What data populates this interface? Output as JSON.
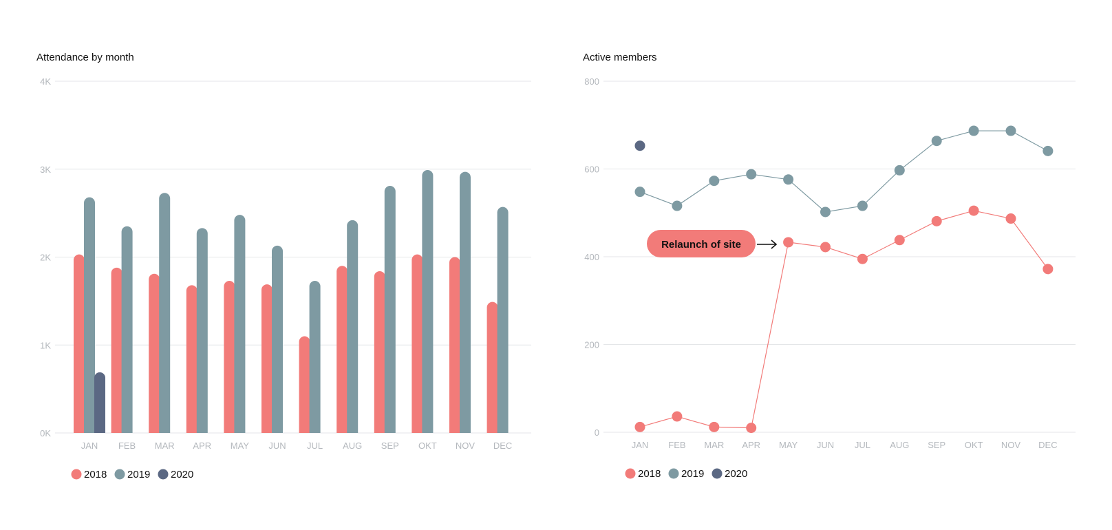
{
  "colors": {
    "2018": "#f27b79",
    "2019": "#7e9aa2",
    "2020": "#5b6883",
    "grid": "#e4e6e8",
    "tick": "#b4b8bd"
  },
  "chart_data": [
    {
      "id": "attendance",
      "type": "bar",
      "title": "Attendance by month",
      "xlabel": "",
      "ylabel": "",
      "categories": [
        "JAN",
        "FEB",
        "MAR",
        "APR",
        "MAY",
        "JUN",
        "JUL",
        "AUG",
        "SEP",
        "OKT",
        "NOV",
        "DEC"
      ],
      "ylim": [
        0,
        4000
      ],
      "yticks": [
        0,
        1000,
        2000,
        3000,
        4000
      ],
      "ytick_labels": [
        "0K",
        "1K",
        "2K",
        "3K",
        "4K"
      ],
      "grid": true,
      "legend_position": "bottom-left",
      "series": [
        {
          "name": "2018",
          "values": [
            2030,
            1880,
            1810,
            1680,
            1730,
            1690,
            1100,
            1900,
            1840,
            2030,
            2000,
            1490
          ]
        },
        {
          "name": "2019",
          "values": [
            2680,
            2350,
            2730,
            2330,
            2480,
            2130,
            1730,
            2420,
            2810,
            2990,
            2970,
            2570
          ]
        },
        {
          "name": "2020",
          "values": [
            690,
            null,
            null,
            null,
            null,
            null,
            null,
            null,
            null,
            null,
            null,
            null
          ]
        }
      ]
    },
    {
      "id": "members",
      "type": "line",
      "title": "Active members",
      "xlabel": "",
      "ylabel": "",
      "categories": [
        "JAN",
        "FEB",
        "MAR",
        "APR",
        "MAY",
        "JUN",
        "JUL",
        "AUG",
        "SEP",
        "OKT",
        "NOV",
        "DEC"
      ],
      "ylim": [
        0,
        800
      ],
      "yticks": [
        0,
        200,
        400,
        600,
        800
      ],
      "ytick_labels": [
        "0",
        "200",
        "400",
        "600",
        "800"
      ],
      "grid": true,
      "legend_position": "bottom-left",
      "series": [
        {
          "name": "2018",
          "values": [
            12,
            36,
            12,
            10,
            433,
            422,
            395,
            438,
            481,
            505,
            487,
            372
          ]
        },
        {
          "name": "2019",
          "values": [
            548,
            516,
            573,
            588,
            576,
            502,
            516,
            597,
            664,
            687,
            687,
            641
          ]
        },
        {
          "name": "2020",
          "values": [
            653,
            null,
            null,
            null,
            null,
            null,
            null,
            null,
            null,
            null,
            null,
            null
          ]
        }
      ],
      "annotation": {
        "text": "Relaunch of site",
        "category": "MAY",
        "series": "2018"
      }
    }
  ]
}
